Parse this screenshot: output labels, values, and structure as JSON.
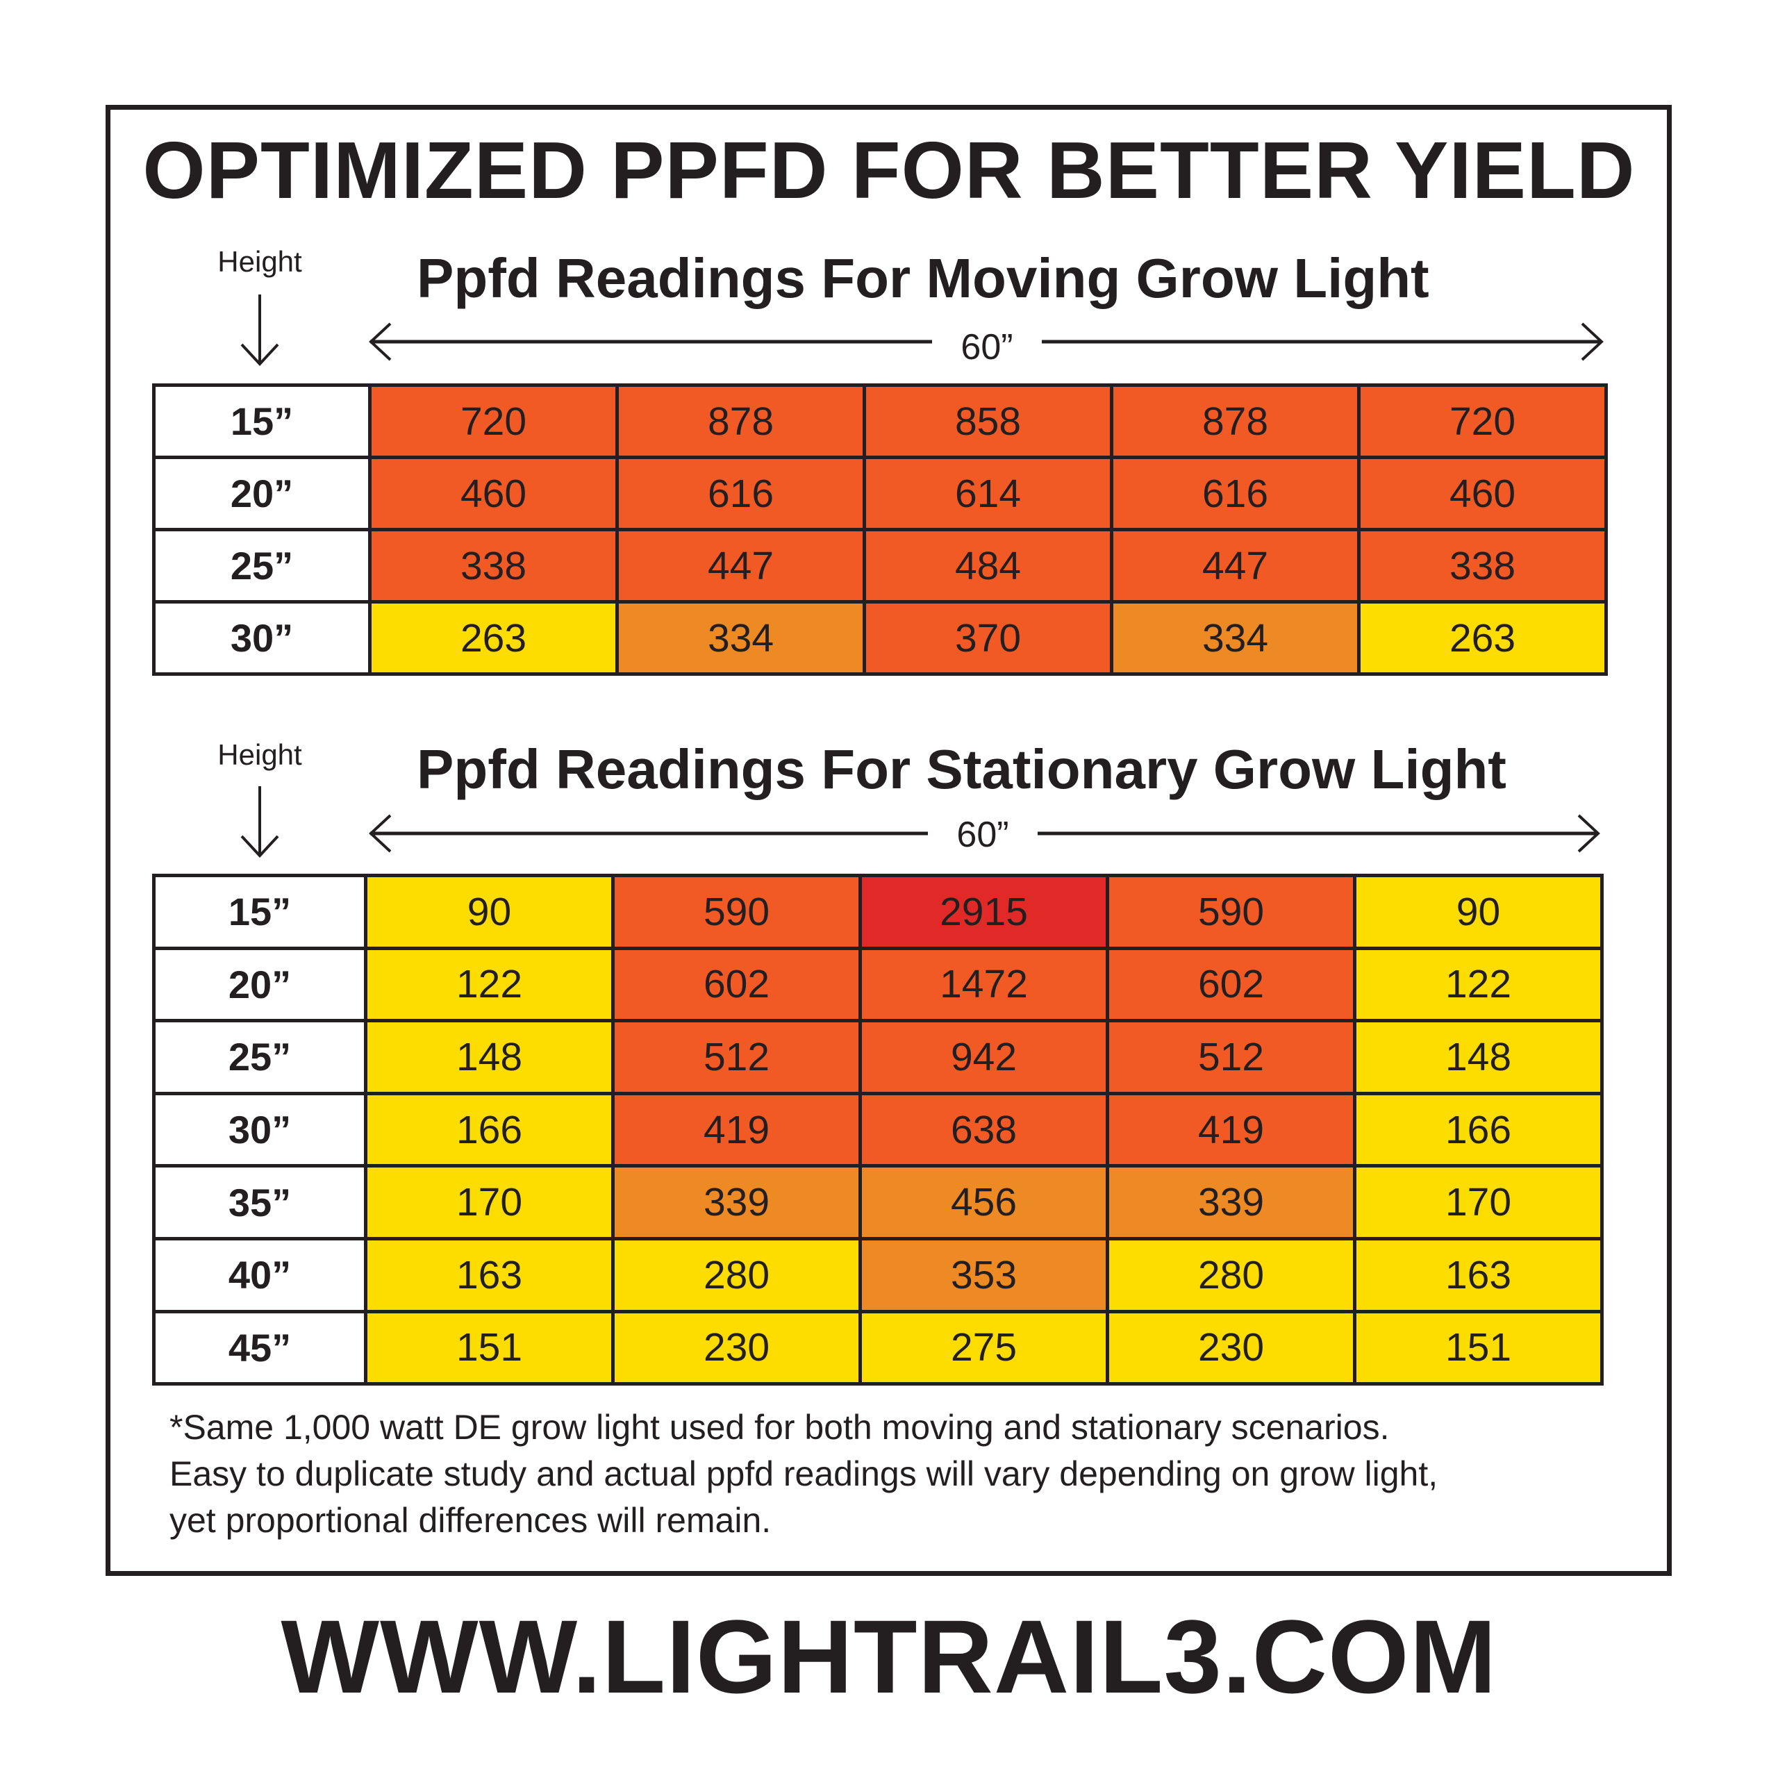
{
  "title": "OPTIMIZED PPFD FOR BETTER YIELD",
  "footer_url": "WWW.LIGHTRAIL3.COM",
  "footnote": [
    "*Same 1,000 watt DE grow light used for both moving and stationary scenarios.",
    "Easy to duplicate study and actual ppfd readings will vary depending on grow light,",
    "yet proportional differences will remain."
  ],
  "colors": {
    "red": "#e12a27",
    "red_orange": "#f15a24",
    "orange": "#ee8a23",
    "yellow": "#fddd00",
    "border": "#231f20"
  },
  "moving": {
    "height_label": "Height",
    "subtitle": "Ppfd Readings For Moving Grow Light",
    "width_label": "60”",
    "rows": [
      {
        "height": "15”",
        "values": [
          "720",
          "878",
          "858",
          "878",
          "720"
        ],
        "colors": [
          "ro",
          "ro",
          "ro",
          "ro",
          "ro"
        ]
      },
      {
        "height": "20”",
        "values": [
          "460",
          "616",
          "614",
          "616",
          "460"
        ],
        "colors": [
          "ro",
          "ro",
          "ro",
          "ro",
          "ro"
        ]
      },
      {
        "height": "25”",
        "values": [
          "338",
          "447",
          "484",
          "447",
          "338"
        ],
        "colors": [
          "ro",
          "ro",
          "ro",
          "ro",
          "ro"
        ]
      },
      {
        "height": "30”",
        "values": [
          "263",
          "334",
          "370",
          "334",
          "263"
        ],
        "colors": [
          "ye",
          "or",
          "ro",
          "or",
          "ye"
        ]
      }
    ]
  },
  "stationary": {
    "height_label": "Height",
    "subtitle": "Ppfd Readings For Stationary Grow Light",
    "width_label": "60”",
    "rows": [
      {
        "height": "15”",
        "values": [
          "90",
          "590",
          "2915",
          "590",
          "90"
        ],
        "colors": [
          "ye",
          "ro",
          "red",
          "ro",
          "ye"
        ]
      },
      {
        "height": "20”",
        "values": [
          "122",
          "602",
          "1472",
          "602",
          "122"
        ],
        "colors": [
          "ye",
          "ro",
          "ro",
          "ro",
          "ye"
        ]
      },
      {
        "height": "25”",
        "values": [
          "148",
          "512",
          "942",
          "512",
          "148"
        ],
        "colors": [
          "ye",
          "ro",
          "ro",
          "ro",
          "ye"
        ]
      },
      {
        "height": "30”",
        "values": [
          "166",
          "419",
          "638",
          "419",
          "166"
        ],
        "colors": [
          "ye",
          "ro",
          "ro",
          "ro",
          "ye"
        ]
      },
      {
        "height": "35”",
        "values": [
          "170",
          "339",
          "456",
          "339",
          "170"
        ],
        "colors": [
          "ye",
          "or",
          "or",
          "or",
          "ye"
        ]
      },
      {
        "height": "40”",
        "values": [
          "163",
          "280",
          "353",
          "280",
          "163"
        ],
        "colors": [
          "ye",
          "ye",
          "or",
          "ye",
          "ye"
        ]
      },
      {
        "height": "45”",
        "values": [
          "151",
          "230",
          "275",
          "230",
          "151"
        ],
        "colors": [
          "ye",
          "ye",
          "ye",
          "ye",
          "ye"
        ]
      }
    ]
  },
  "chart_data": [
    {
      "type": "heatmap",
      "title": "Ppfd Readings For Moving Grow Light",
      "xlabel": "60” (horizontal span, 5 positions)",
      "ylabel": "Height",
      "rows": [
        "15”",
        "20”",
        "25”",
        "30”"
      ],
      "values": [
        [
          720,
          878,
          858,
          878,
          720
        ],
        [
          460,
          616,
          614,
          616,
          460
        ],
        [
          338,
          447,
          484,
          447,
          338
        ],
        [
          263,
          334,
          370,
          334,
          263
        ]
      ]
    },
    {
      "type": "heatmap",
      "title": "Ppfd Readings For Stationary Grow Light",
      "xlabel": "60” (horizontal span, 5 positions)",
      "ylabel": "Height",
      "rows": [
        "15”",
        "20”",
        "25”",
        "30”",
        "35”",
        "40”",
        "45”"
      ],
      "values": [
        [
          90,
          590,
          2915,
          590,
          90
        ],
        [
          122,
          602,
          1472,
          602,
          122
        ],
        [
          148,
          512,
          942,
          512,
          148
        ],
        [
          166,
          419,
          638,
          419,
          166
        ],
        [
          170,
          339,
          456,
          339,
          170
        ],
        [
          163,
          280,
          353,
          280,
          163
        ],
        [
          151,
          230,
          275,
          230,
          151
        ]
      ]
    }
  ]
}
